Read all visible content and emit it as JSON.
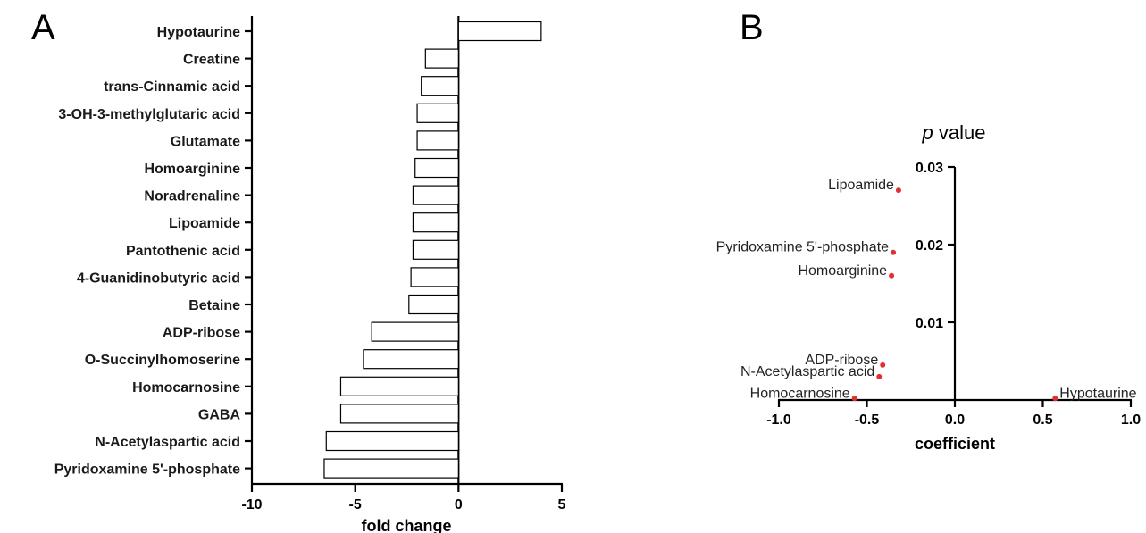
{
  "chart_data": [
    {
      "panel": "A",
      "type": "bar",
      "orientation": "horizontal",
      "categories": [
        "Hypotaurine",
        "Creatine",
        "trans-Cinnamic acid",
        "3-OH-3-methylglutaric acid",
        "Glutamate",
        "Homoarginine",
        "Noradrenaline",
        "Lipoamide",
        "Pantothenic acid",
        "4-Guanidinobutyric acid",
        "Betaine",
        "ADP-ribose",
        "O-Succinylhomoserine",
        "Homocarnosine",
        "GABA",
        "N-Acetylaspartic acid",
        "Pyridoxamine 5'-phosphate"
      ],
      "values": [
        4.0,
        -1.6,
        -1.8,
        -2.0,
        -2.0,
        -2.1,
        -2.2,
        -2.2,
        -2.2,
        -2.3,
        -2.4,
        -4.2,
        -4.6,
        -5.7,
        -5.7,
        -6.4,
        -6.5
      ],
      "xlabel": "fold change",
      "xlim": [
        -10,
        5
      ],
      "xticks": [
        "-10",
        "-5",
        "0",
        "5"
      ],
      "grid": false
    },
    {
      "panel": "B",
      "type": "scatter",
      "points": [
        {
          "label": "Lipoamide",
          "x": -0.32,
          "y": 0.027
        },
        {
          "label": "Pyridoxamine 5'-phosphate",
          "x": -0.35,
          "y": 0.019
        },
        {
          "label": "Homoarginine",
          "x": -0.36,
          "y": 0.016
        },
        {
          "label": "ADP-ribose",
          "x": -0.41,
          "y": 0.0045
        },
        {
          "label": "N-Acetylaspartic acid",
          "x": -0.43,
          "y": 0.003
        },
        {
          "label": "Homocarnosine",
          "x": -0.57,
          "y": 0.0002
        },
        {
          "label": "Hypotaurine",
          "x": 0.57,
          "y": 0.0002
        }
      ],
      "title_italic": "p",
      "title_rest": " value",
      "xlabel": "coefficient",
      "xlim": [
        -1.0,
        1.0
      ],
      "ylim": [
        0,
        0.03
      ],
      "xticks": [
        "-1.0",
        "-0.5",
        "0.0",
        "0.5",
        "1.0"
      ],
      "yticks": [
        "0.01",
        "0.02",
        "0.03"
      ],
      "point_color": "#e03030",
      "grid": false
    }
  ]
}
